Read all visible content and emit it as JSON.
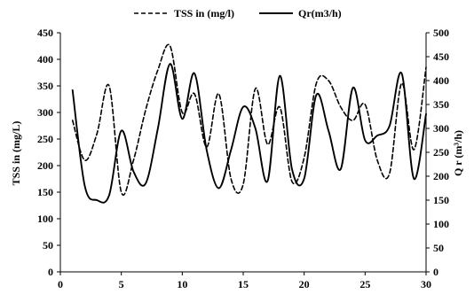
{
  "chart_data": {
    "type": "line",
    "title": "",
    "xlabel": "",
    "ylabel_left": "TSS in (mg/L)",
    "ylabel_right": "Q r (m³/h)",
    "legend": {
      "placement": "top",
      "entries": [
        {
          "label": "TSS in (mg/l)",
          "style": "dashed"
        },
        {
          "label": "Qr(m3/h)",
          "style": "solid"
        }
      ]
    },
    "xlim": [
      0,
      30
    ],
    "ylim_left": [
      0,
      450
    ],
    "ylim_right": [
      0,
      500
    ],
    "xticks": [
      "0",
      "5",
      "10",
      "15",
      "20",
      "25",
      "30"
    ],
    "yticks_left": [
      "0",
      "50",
      "100",
      "150",
      "200",
      "250",
      "300",
      "350",
      "400",
      "450"
    ],
    "yticks_right": [
      "0",
      "50",
      "100",
      "150",
      "200",
      "250",
      "300",
      "350",
      "400",
      "450",
      "500"
    ],
    "grid": false,
    "series": [
      {
        "name": "TSS in (mg/l)",
        "axis": "left",
        "style": "dashed",
        "x": [
          1,
          2,
          3,
          4,
          5,
          6,
          7,
          8,
          9,
          10,
          11,
          12,
          13,
          14,
          15,
          16,
          17,
          18,
          19,
          20,
          21,
          22,
          23,
          24,
          25,
          26,
          27,
          28,
          29,
          30
        ],
        "y": [
          285,
          210,
          260,
          350,
          150,
          210,
          305,
          380,
          425,
          300,
          335,
          235,
          335,
          175,
          165,
          345,
          240,
          310,
          170,
          215,
          355,
          360,
          310,
          285,
          315,
          210,
          185,
          355,
          230,
          385
        ]
      },
      {
        "name": "Qr(m3/h)",
        "axis": "right",
        "style": "solid",
        "x": [
          1,
          2,
          3,
          4,
          5,
          6,
          7,
          8,
          9,
          10,
          11,
          12,
          13,
          14,
          15,
          16,
          17,
          18,
          19,
          20,
          21,
          22,
          23,
          24,
          25,
          26,
          27,
          28,
          29,
          30
        ],
        "y": [
          380,
          180,
          150,
          160,
          295,
          210,
          185,
          300,
          435,
          320,
          415,
          255,
          175,
          255,
          345,
          300,
          190,
          410,
          215,
          195,
          370,
          295,
          215,
          385,
          275,
          285,
          305,
          415,
          195,
          330
        ]
      }
    ]
  }
}
